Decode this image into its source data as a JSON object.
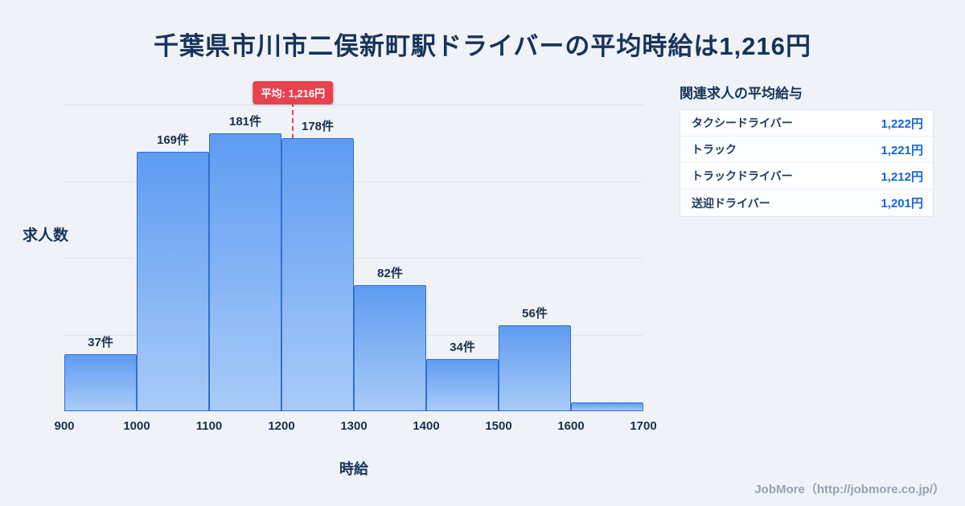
{
  "title": "千葉県市川市二俣新町駅ドライバーの平均時給は1,216円",
  "chart_data": {
    "type": "bar",
    "title": "",
    "xlabel": "時給",
    "ylabel": "求人数",
    "xlim": [
      900,
      1700
    ],
    "ylim": [
      0,
      200
    ],
    "gridline_values": [
      50,
      100,
      150,
      200
    ],
    "x_ticks": [
      900,
      1000,
      1100,
      1200,
      1300,
      1400,
      1500,
      1600,
      1700
    ],
    "bins": [
      {
        "range": [
          900,
          1000
        ],
        "count": 37,
        "label": "37件"
      },
      {
        "range": [
          1000,
          1100
        ],
        "count": 169,
        "label": "169件"
      },
      {
        "range": [
          1100,
          1200
        ],
        "count": 181,
        "label": "181件"
      },
      {
        "range": [
          1200,
          1300
        ],
        "count": 178,
        "label": "178件"
      },
      {
        "range": [
          1300,
          1400
        ],
        "count": 82,
        "label": "82件"
      },
      {
        "range": [
          1400,
          1500
        ],
        "count": 34,
        "label": "34件"
      },
      {
        "range": [
          1500,
          1600
        ],
        "count": 56,
        "label": "56件"
      },
      {
        "range": [
          1600,
          1700
        ],
        "count": 6,
        "label": ""
      }
    ],
    "mean": {
      "value": 1216,
      "label": "平均: 1,216円"
    },
    "legend": "none",
    "grid": "horizontal"
  },
  "sidebar": {
    "heading": "関連求人の平均給与",
    "rows": [
      {
        "label": "タクシードライバー",
        "value": "1,222円"
      },
      {
        "label": "トラック",
        "value": "1,221円"
      },
      {
        "label": "トラックドライバー",
        "value": "1,212円"
      },
      {
        "label": "送迎ドライバー",
        "value": "1,201円"
      }
    ]
  },
  "footer": {
    "credit": "JobMore（http://jobmore.co.jp/）"
  },
  "colors": {
    "background": "#eff3f8",
    "title_text": "#17335b",
    "bar_top": "#5e9cf1",
    "bar_bottom": "#a9cbf8",
    "bar_border": "#2f6fd0",
    "mean_accent": "#e8414f",
    "table_value_blue": "#1566d6",
    "footer_gray": "#97a1ae"
  }
}
